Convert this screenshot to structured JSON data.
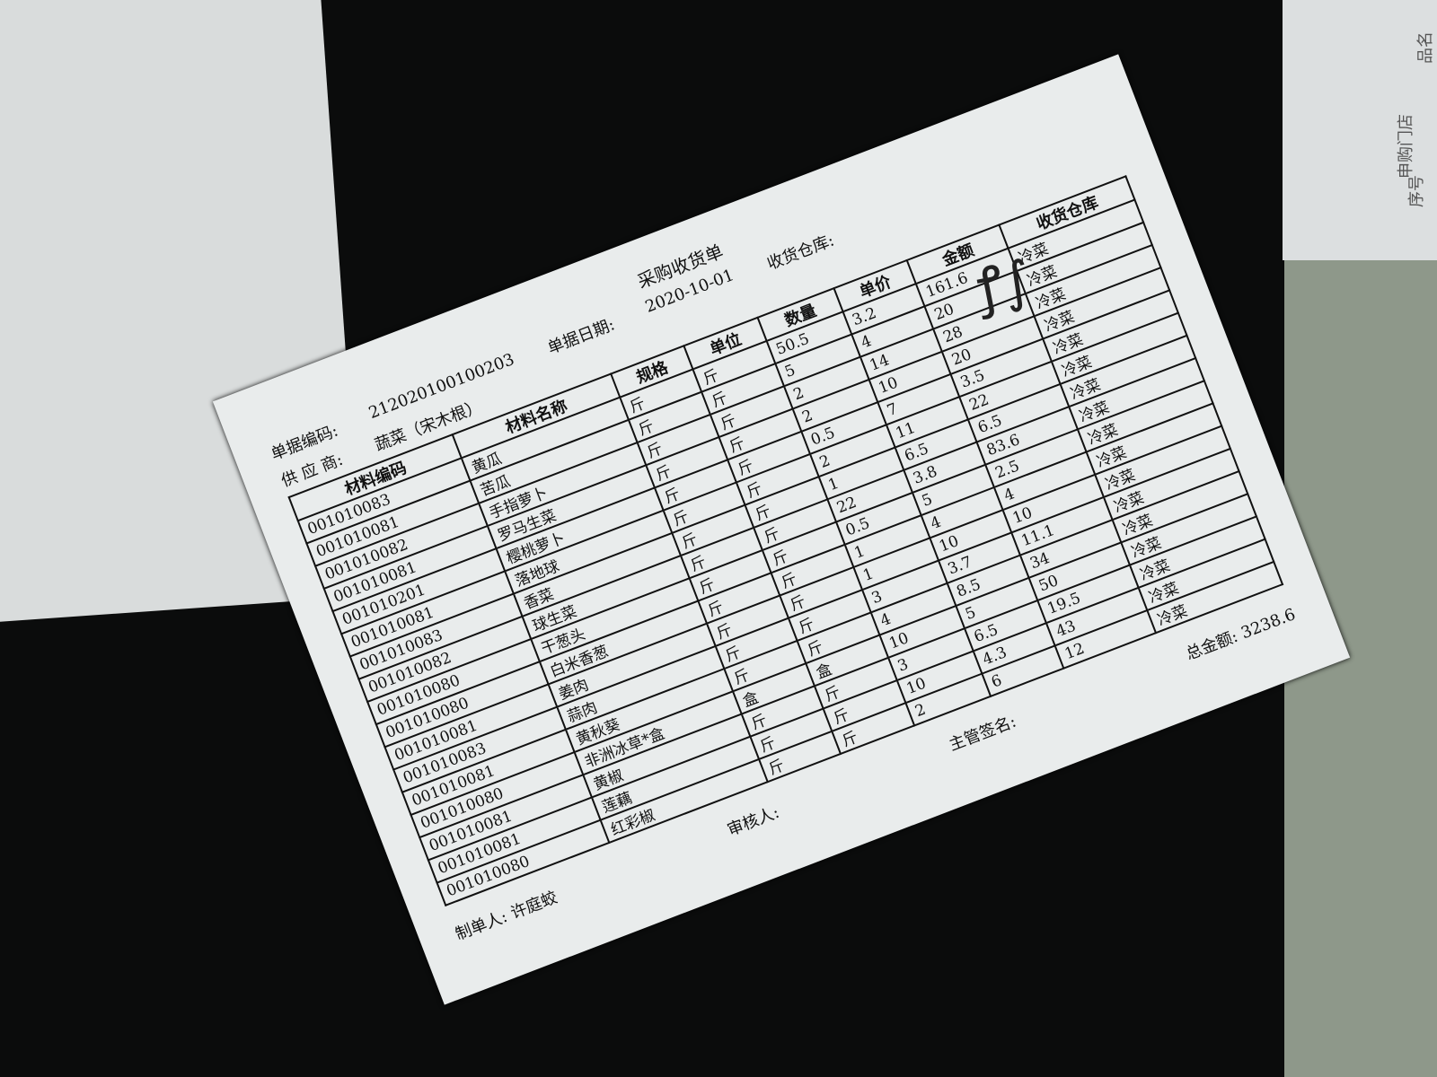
{
  "document": {
    "title": "采购收货单",
    "doc_no_label": "单据编码:",
    "doc_no": "212020100100203",
    "date_label": "单据日期:",
    "date": "2020-10-01",
    "warehouse_label": "收货仓库:",
    "supplier_label": "供 应 商:",
    "supplier": "蔬菜（宋木根）",
    "columns": [
      "材料编码",
      "材料名称",
      "规格",
      "单位",
      "数量",
      "单价",
      "金额",
      "收货仓库"
    ],
    "rows": [
      {
        "code": "001010083",
        "name": "黄瓜",
        "spec": "斤",
        "unit": "斤",
        "qty": "50.5",
        "price": "3.2",
        "amount": "161.6",
        "warehouse": "冷菜"
      },
      {
        "code": "001010081",
        "name": "苦瓜",
        "spec": "斤",
        "unit": "斤",
        "qty": "5",
        "price": "4",
        "amount": "20",
        "warehouse": "冷菜"
      },
      {
        "code": "001010082",
        "name": "手指萝卜",
        "spec": "斤",
        "unit": "斤",
        "qty": "2",
        "price": "14",
        "amount": "28",
        "warehouse": "冷菜"
      },
      {
        "code": "001010081",
        "name": "罗马生菜",
        "spec": "斤",
        "unit": "斤",
        "qty": "2",
        "price": "10",
        "amount": "20",
        "warehouse": "冷菜"
      },
      {
        "code": "001010201",
        "name": "樱桃萝卜",
        "spec": "斤",
        "unit": "斤",
        "qty": "0.5",
        "price": "7",
        "amount": "3.5",
        "warehouse": "冷菜"
      },
      {
        "code": "001010081",
        "name": "落地球",
        "spec": "斤",
        "unit": "斤",
        "qty": "2",
        "price": "11",
        "amount": "22",
        "warehouse": "冷菜"
      },
      {
        "code": "001010083",
        "name": "香菜",
        "spec": "斤",
        "unit": "斤",
        "qty": "1",
        "price": "6.5",
        "amount": "6.5",
        "warehouse": "冷菜"
      },
      {
        "code": "001010082",
        "name": "球生菜",
        "spec": "斤",
        "unit": "斤",
        "qty": "22",
        "price": "3.8",
        "amount": "83.6",
        "warehouse": "冷菜"
      },
      {
        "code": "001010080",
        "name": "干葱头",
        "spec": "斤",
        "unit": "斤",
        "qty": "0.5",
        "price": "5",
        "amount": "2.5",
        "warehouse": "冷菜"
      },
      {
        "code": "001010080",
        "name": "白米香葱",
        "spec": "斤",
        "unit": "斤",
        "qty": "1",
        "price": "4",
        "amount": "4",
        "warehouse": "冷菜"
      },
      {
        "code": "001010081",
        "name": "姜肉",
        "spec": "斤",
        "unit": "斤",
        "qty": "1",
        "price": "10",
        "amount": "10",
        "warehouse": "冷菜"
      },
      {
        "code": "001010083",
        "name": "蒜肉",
        "spec": "斤",
        "unit": "斤",
        "qty": "3",
        "price": "3.7",
        "amount": "11.1",
        "warehouse": "冷菜"
      },
      {
        "code": "001010081",
        "name": "黄秋葵",
        "spec": "斤",
        "unit": "斤",
        "qty": "4",
        "price": "8.5",
        "amount": "34",
        "warehouse": "冷菜"
      },
      {
        "code": "001010080",
        "name": "非洲冰草*盒",
        "spec": "盒",
        "unit": "盒",
        "qty": "10",
        "price": "5",
        "amount": "50",
        "warehouse": "冷菜"
      },
      {
        "code": "001010081",
        "name": "黄椒",
        "spec": "斤",
        "unit": "斤",
        "qty": "3",
        "price": "6.5",
        "amount": "19.5",
        "warehouse": "冷菜"
      },
      {
        "code": "001010081",
        "name": "莲藕",
        "spec": "斤",
        "unit": "斤",
        "qty": "10",
        "price": "4.3",
        "amount": "43",
        "warehouse": "冷菜"
      },
      {
        "code": "001010080",
        "name": "红彩椒",
        "spec": "斤",
        "unit": "斤",
        "qty": "2",
        "price": "6",
        "amount": "12",
        "warehouse": "冷菜"
      }
    ],
    "total_label": "总金额:",
    "total": "3238.6",
    "maker_label": "制单人:",
    "maker": "许庭蛟",
    "reviewer_label": "审核人:",
    "supervisor_label": "主管签名:",
    "signature": "handwritten signature"
  },
  "background": {
    "left_paper_text": [
      "申购门店",
      "序号",
      "品名"
    ]
  }
}
